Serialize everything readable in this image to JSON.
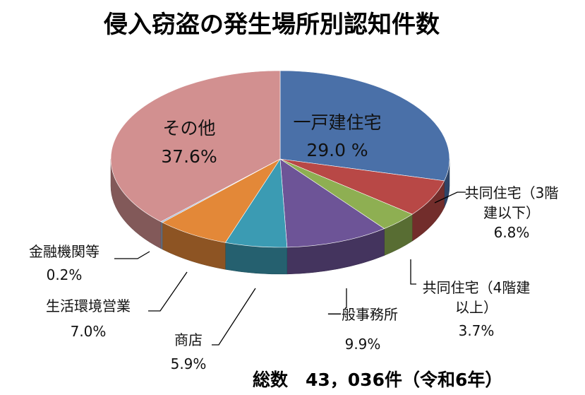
{
  "chart_data": {
    "type": "pie",
    "title": "侵入窃盗の発生場所別認知件数",
    "footnote": "総数　43，036件（令和6年）",
    "categories": [
      "一戸建住宅",
      "共同住宅（3階建以下）",
      "共同住宅（4階建以上）",
      "一般事務所",
      "商店",
      "生活環境営業",
      "金融機関等",
      "その他"
    ],
    "values": [
      29.0,
      6.8,
      3.7,
      9.9,
      5.9,
      7.0,
      0.2,
      37.6
    ],
    "value_labels": [
      "29.0 %",
      "6.8%",
      "3.7%",
      "9.9%",
      "5.9%",
      "7.0%",
      "0.2%",
      "37.6%"
    ],
    "colors": [
      "#4a70a8",
      "#b84846",
      "#8eaf52",
      "#6d5497",
      "#3b9bb3",
      "#e38838",
      "#9db3d3",
      "#d29090"
    ],
    "label_lines": [
      [
        "一戸建住宅"
      ],
      [
        "共同住宅（3階",
        "建以下）"
      ],
      [
        "共同住宅（4階建",
        "以上）"
      ],
      [
        "一般事務所"
      ],
      [
        "商店"
      ],
      [
        "生活環境営業"
      ],
      [
        "金融機関等"
      ],
      [
        "その他"
      ]
    ]
  }
}
